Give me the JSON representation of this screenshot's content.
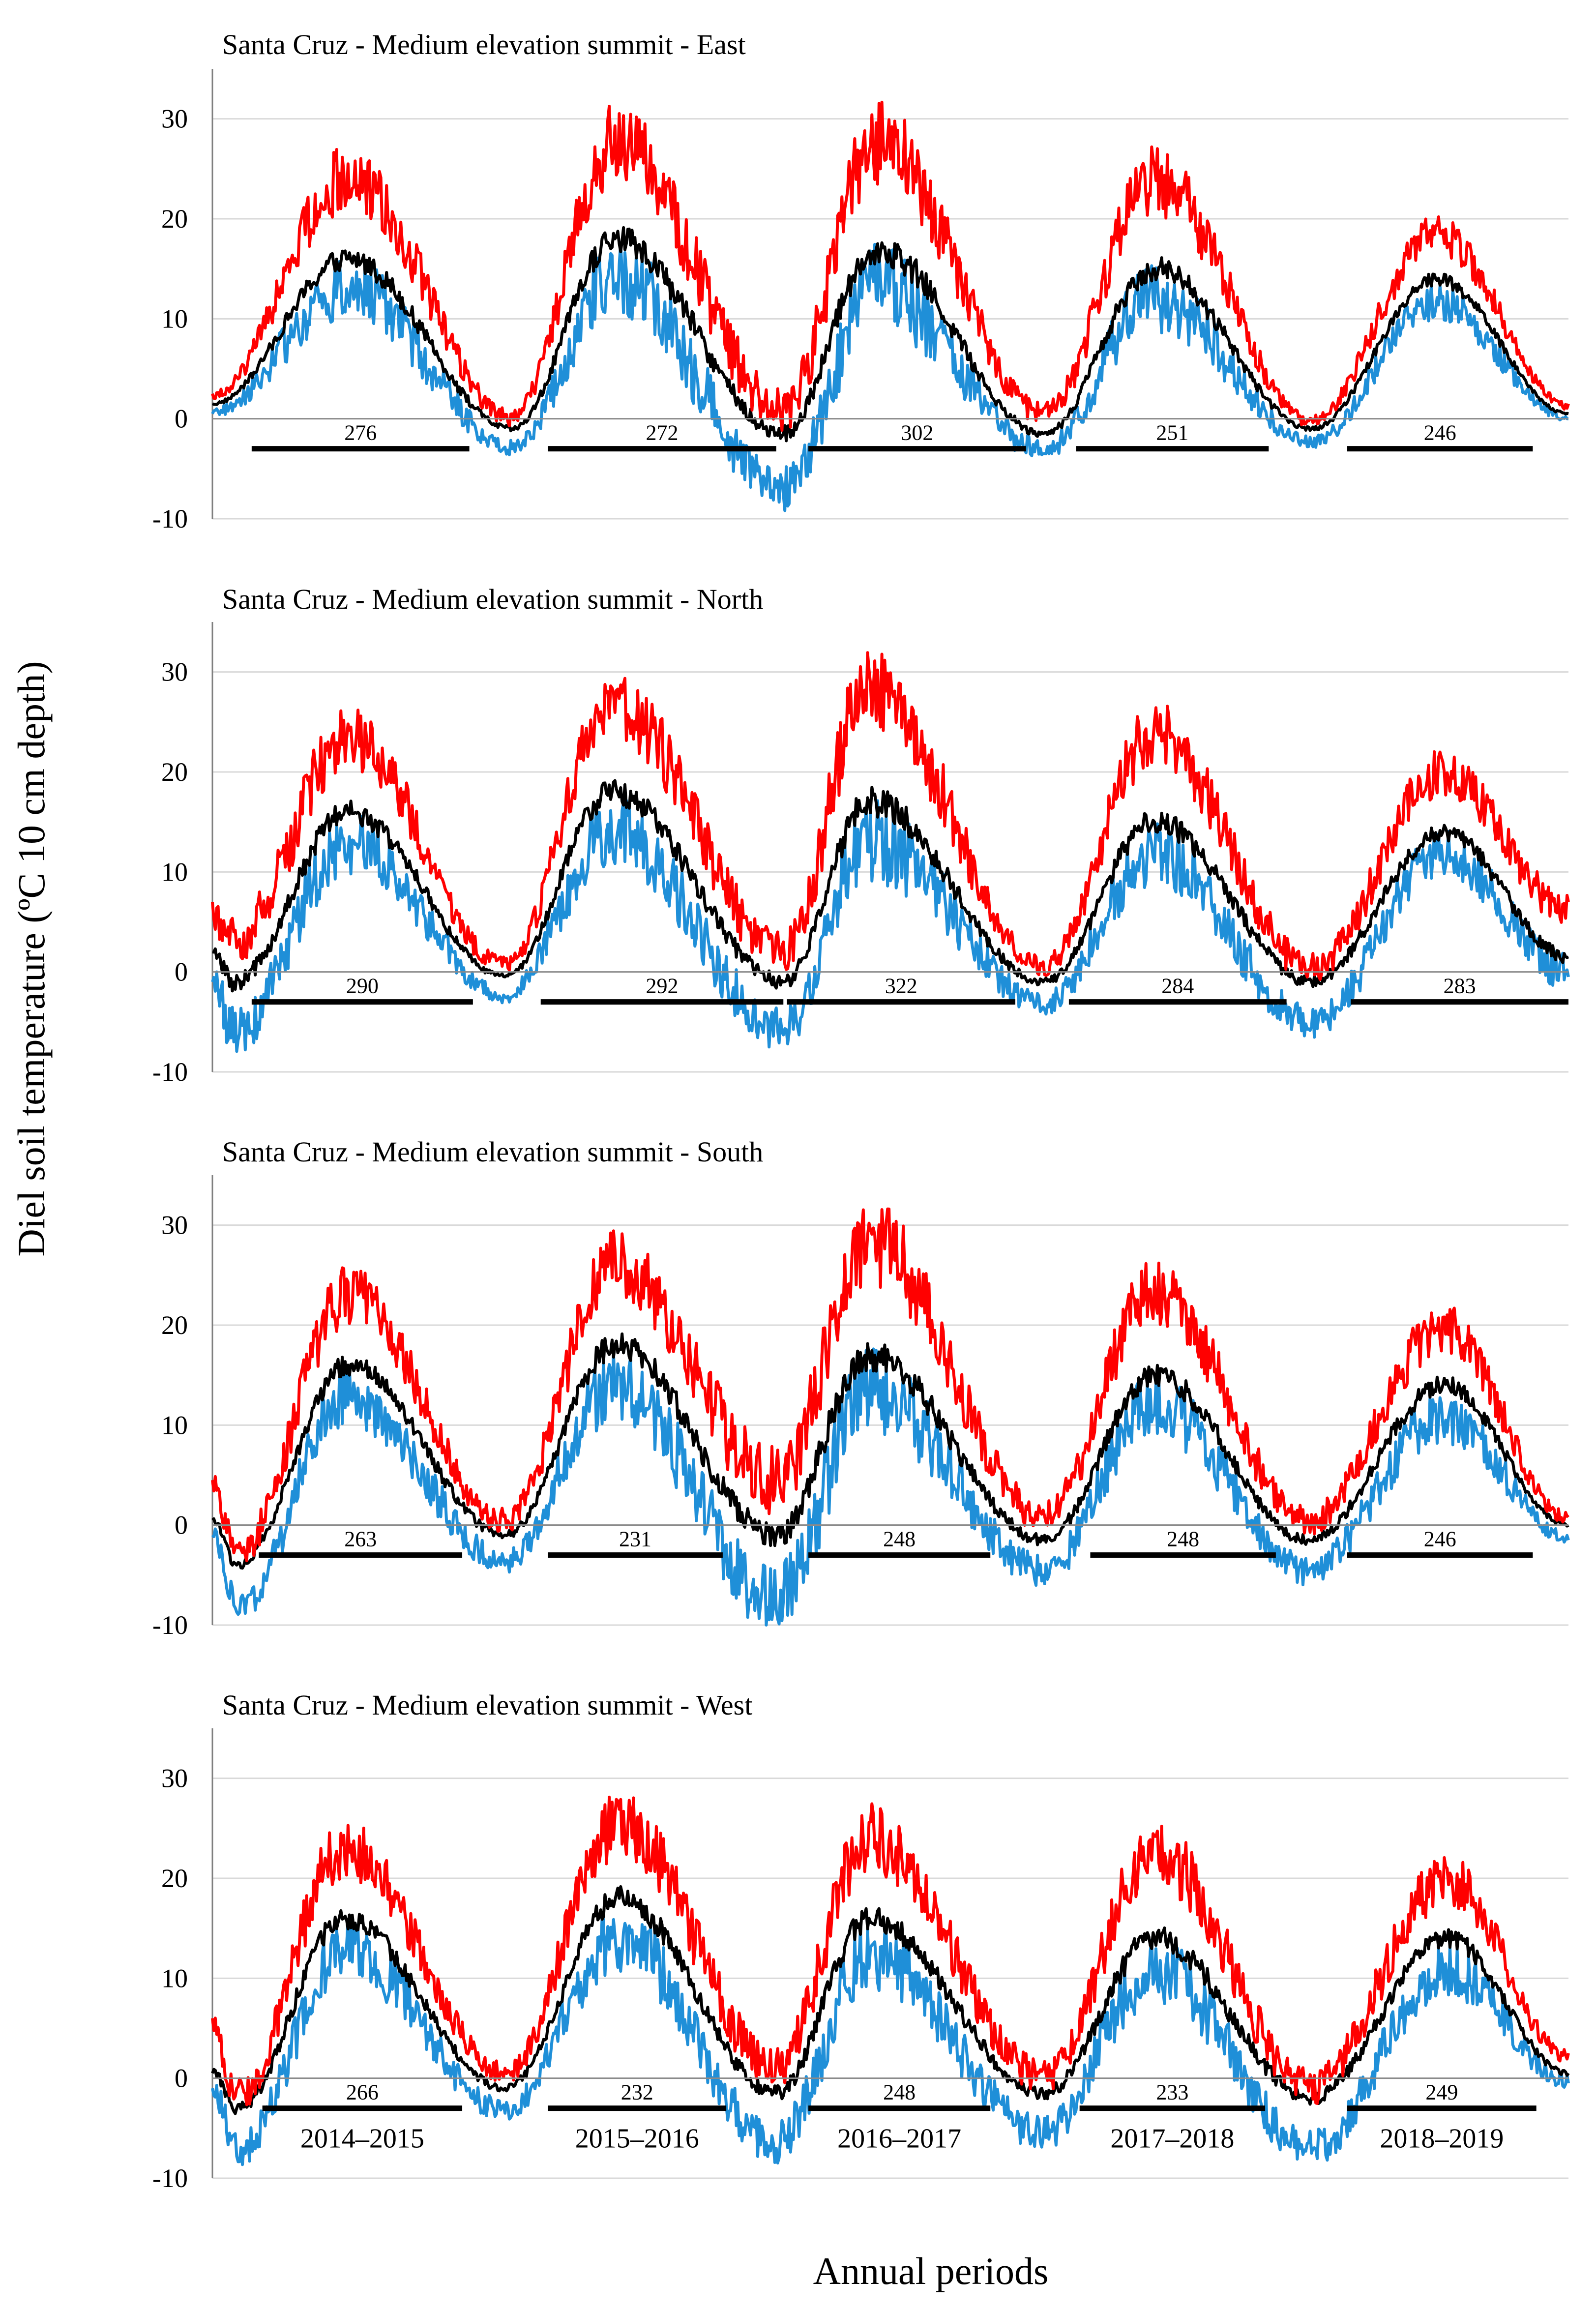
{
  "figure": {
    "ylabel": "Diel soil temperature (ºC 10 cm depth)",
    "xlabel": "Annual periods",
    "colors": {
      "max": "#ff0000",
      "mean": "#000000",
      "min": "#1f8fd8",
      "zero_line": "#8a8a8a",
      "grid": "#d9d9d9"
    }
  },
  "chart_data": [
    {
      "type": "line",
      "title": "Santa Cruz - Medium elevation summit - East",
      "ylim": [
        -10,
        35
      ],
      "yticks": [
        -10,
        0,
        10,
        20,
        30
      ],
      "grid": true,
      "x_range_days": [
        0,
        1900
      ],
      "period_labels": [],
      "segments": [
        {
          "start": 55,
          "end": 360,
          "value": 276
        },
        {
          "start": 470,
          "end": 790,
          "value": 272
        },
        {
          "start": 835,
          "end": 1140,
          "value": 302
        },
        {
          "start": 1210,
          "end": 1480,
          "value": 251
        },
        {
          "start": 1590,
          "end": 1850,
          "value": 246
        }
      ],
      "peaks": [
        {
          "day": 190,
          "max": 25.5,
          "mean": 16,
          "min": 12
        },
        {
          "day": 565,
          "max": 29.3,
          "mean": 18,
          "min": 13
        },
        {
          "day": 930,
          "max": 29.6,
          "mean": 17,
          "min": 12
        },
        {
          "day": 1320,
          "max": 25.3,
          "mean": 15,
          "min": 11
        },
        {
          "day": 1715,
          "max": 19.3,
          "mean": 14,
          "min": 11
        }
      ],
      "troughs": [
        {
          "day": 0,
          "max": 2.5,
          "mean": 1.5,
          "min": 0.5
        },
        {
          "day": 420,
          "max": 0.5,
          "mean": -1,
          "min": -3
        },
        {
          "day": 800,
          "max": 2,
          "mean": -1.5,
          "min": -7.6
        },
        {
          "day": 1165,
          "max": 1,
          "mean": -1.5,
          "min": -3.5
        },
        {
          "day": 1540,
          "max": 0,
          "mean": -1,
          "min": -2.5
        },
        {
          "day": 1900,
          "max": 1.5,
          "mean": 0.5,
          "min": 0
        }
      ]
    },
    {
      "type": "line",
      "title": "Santa Cruz - Medium elevation summit - North",
      "ylim": [
        -10,
        35
      ],
      "yticks": [
        -10,
        0,
        10,
        20,
        30
      ],
      "grid": true,
      "x_range_days": [
        0,
        1900
      ],
      "period_labels": [],
      "segments": [
        {
          "start": 55,
          "end": 365,
          "value": 290
        },
        {
          "start": 460,
          "end": 800,
          "value": 292
        },
        {
          "start": 805,
          "end": 1125,
          "value": 322
        },
        {
          "start": 1200,
          "end": 1505,
          "value": 284
        },
        {
          "start": 1595,
          "end": 1900,
          "value": 283
        }
      ],
      "peaks": [
        {
          "day": 190,
          "max": 24.8,
          "mean": 16,
          "min": 12
        },
        {
          "day": 560,
          "max": 28.4,
          "mean": 18,
          "min": 13
        },
        {
          "day": 920,
          "max": 30.2,
          "mean": 17,
          "min": 12
        },
        {
          "day": 1320,
          "max": 25.1,
          "mean": 15,
          "min": 11
        },
        {
          "day": 1725,
          "max": 21,
          "mean": 14,
          "min": 11
        }
      ],
      "troughs": [
        {
          "day": 0,
          "max": 7,
          "mean": 2,
          "min": -1
        },
        {
          "day": 30,
          "max": 4,
          "mean": -1,
          "min": -7
        },
        {
          "day": 410,
          "max": 1,
          "mean": -0.5,
          "min": -2.5
        },
        {
          "day": 800,
          "max": 3,
          "mean": -1,
          "min": -6.3
        },
        {
          "day": 1165,
          "max": 1,
          "mean": -1,
          "min": -3.5
        },
        {
          "day": 1540,
          "max": 1,
          "mean": -1,
          "min": -5.5
        },
        {
          "day": 1900,
          "max": 7,
          "mean": 1.5,
          "min": -0.5
        }
      ]
    },
    {
      "type": "line",
      "title": "Santa Cruz - Medium elevation summit - South",
      "ylim": [
        -10,
        35
      ],
      "yticks": [
        -10,
        0,
        10,
        20,
        30
      ],
      "grid": true,
      "x_range_days": [
        0,
        1900
      ],
      "period_labels": [],
      "segments": [
        {
          "start": 65,
          "end": 350,
          "value": 263
        },
        {
          "start": 470,
          "end": 715,
          "value": 231
        },
        {
          "start": 835,
          "end": 1090,
          "value": 248
        },
        {
          "start": 1230,
          "end": 1490,
          "value": 248
        },
        {
          "start": 1590,
          "end": 1850,
          "value": 246
        }
      ],
      "peaks": [
        {
          "day": 190,
          "max": 24.3,
          "mean": 16,
          "min": 12
        },
        {
          "day": 565,
          "max": 27.6,
          "mean": 18,
          "min": 13
        },
        {
          "day": 920,
          "max": 30.2,
          "mean": 17,
          "min": 12
        },
        {
          "day": 1320,
          "max": 24.8,
          "mean": 15,
          "min": 11
        },
        {
          "day": 1725,
          "max": 20.8,
          "mean": 14,
          "min": 10
        }
      ],
      "troughs": [
        {
          "day": 0,
          "max": 4.5,
          "mean": 0.5,
          "min": -1
        },
        {
          "day": 35,
          "max": -2,
          "mean": -4,
          "min": -8.7
        },
        {
          "day": 410,
          "max": 1,
          "mean": -1,
          "min": -4
        },
        {
          "day": 790,
          "max": 6,
          "mean": -1,
          "min": -8.5
        },
        {
          "day": 1165,
          "max": 1.5,
          "mean": -1.5,
          "min": -5
        },
        {
          "day": 1535,
          "max": 1,
          "mean": -1.5,
          "min": -5
        },
        {
          "day": 1900,
          "max": 1,
          "mean": 0,
          "min": -1.5
        }
      ]
    },
    {
      "type": "line",
      "title": "Santa Cruz - Medium elevation summit - West",
      "ylim": [
        -10,
        35
      ],
      "yticks": [
        -10,
        0,
        10,
        20,
        30
      ],
      "grid": true,
      "x_range_days": [
        0,
        1900
      ],
      "period_labels": [
        "2014–2015",
        "2015–2016",
        "2016–2017",
        "2017–2018",
        "2018–2019"
      ],
      "segments": [
        {
          "start": 70,
          "end": 350,
          "value": 266
        },
        {
          "start": 470,
          "end": 720,
          "value": 232
        },
        {
          "start": 835,
          "end": 1090,
          "value": 248
        },
        {
          "start": 1215,
          "end": 1475,
          "value": 233
        },
        {
          "start": 1590,
          "end": 1855,
          "value": 249
        }
      ],
      "peaks": [
        {
          "day": 185,
          "max": 24.3,
          "mean": 16,
          "min": 12
        },
        {
          "day": 570,
          "max": 26.9,
          "mean": 18,
          "min": 13
        },
        {
          "day": 920,
          "max": 25.6,
          "mean": 16,
          "min": 11
        },
        {
          "day": 1320,
          "max": 24.2,
          "mean": 14,
          "min": 10
        },
        {
          "day": 1730,
          "max": 21,
          "mean": 14,
          "min": 10
        }
      ],
      "troughs": [
        {
          "day": 0,
          "max": 6,
          "mean": 0.5,
          "min": -1
        },
        {
          "day": 35,
          "max": -1,
          "mean": -3,
          "min": -7.8
        },
        {
          "day": 410,
          "max": 1,
          "mean": -1,
          "min": -3.5
        },
        {
          "day": 790,
          "max": 2,
          "mean": -1.5,
          "min": -7
        },
        {
          "day": 1165,
          "max": 1,
          "mean": -1.5,
          "min": -6
        },
        {
          "day": 1540,
          "max": 0,
          "mean": -2,
          "min": -7.5
        },
        {
          "day": 1900,
          "max": 2.5,
          "mean": 0.5,
          "min": -0.5
        }
      ]
    }
  ]
}
